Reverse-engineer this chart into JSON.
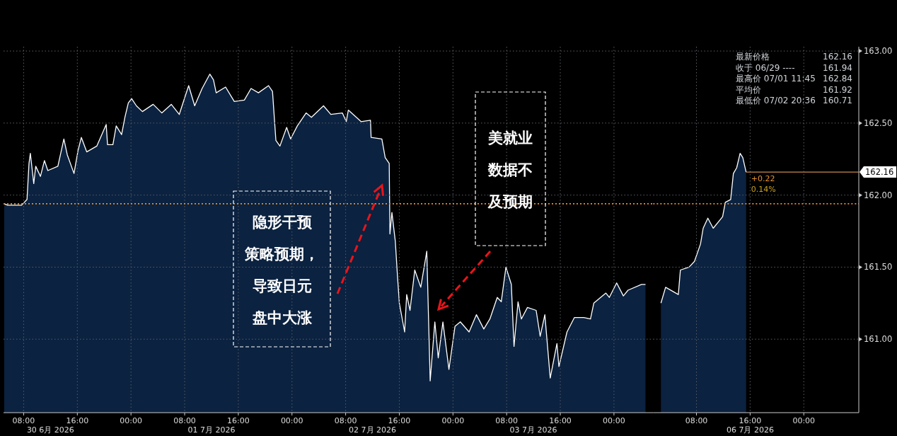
{
  "chart_data": [
    {
      "type": "area",
      "color": "#ffffff",
      "x": [
        "2026-06-30T05:06",
        "2026-06-30T05:36",
        "2026-06-30T07:42",
        "2026-06-30T08:30",
        "2026-06-30T08:48",
        "2026-06-30T09:00",
        "2026-06-30T09:30",
        "2026-06-30T09:48",
        "2026-06-30T10:30",
        "2026-06-30T11:06",
        "2026-06-30T11:36",
        "2026-06-30T13:06",
        "2026-06-30T14:00",
        "2026-06-30T14:30",
        "2026-06-30T15:30",
        "2026-06-30T16:06",
        "2026-06-30T16:36",
        "2026-06-30T17:24",
        "2026-06-30T18:54",
        "2026-06-30T20:18",
        "2026-06-30T20:30",
        "2026-06-30T21:18",
        "2026-06-30T21:48",
        "2026-06-30T22:36",
        "2026-06-30T23:06",
        "2026-06-30T23:36",
        "2026-07-01T00:06",
        "2026-07-01T00:48",
        "2026-07-01T01:42",
        "2026-07-01T03:18",
        "2026-07-01T04:36",
        "2026-07-01T06:00",
        "2026-07-01T07:12",
        "2026-07-01T08:06",
        "2026-07-01T08:36",
        "2026-07-01T09:30",
        "2026-07-01T10:36",
        "2026-07-01T11:45",
        "2026-07-01T12:18",
        "2026-07-01T12:42",
        "2026-07-01T14:06",
        "2026-07-01T15:24",
        "2026-07-01T16:54",
        "2026-07-01T17:54",
        "2026-07-01T19:00",
        "2026-07-01T20:30",
        "2026-07-01T21:06",
        "2026-07-01T21:36",
        "2026-07-01T22:12",
        "2026-07-01T23:12",
        "2026-07-01T23:48",
        "2026-07-02T00:48",
        "2026-07-02T02:06",
        "2026-07-02T02:54",
        "2026-07-02T04:42",
        "2026-07-02T05:48",
        "2026-07-02T07:30",
        "2026-07-02T08:06",
        "2026-07-02T08:24",
        "2026-07-02T10:18",
        "2026-07-02T11:42",
        "2026-07-02T11:48",
        "2026-07-02T13:24",
        "2026-07-02T13:54",
        "2026-07-02T14:30",
        "2026-07-02T14:36",
        "2026-07-02T14:54",
        "2026-07-02T15:24",
        "2026-07-02T15:42",
        "2026-07-02T16:00",
        "2026-07-02T16:48",
        "2026-07-02T17:06",
        "2026-07-02T17:36",
        "2026-07-02T18:18",
        "2026-07-02T19:12",
        "2026-07-02T20:06",
        "2026-07-02T20:36",
        "2026-07-02T21:18",
        "2026-07-02T21:48",
        "2026-07-02T22:30",
        "2026-07-02T23:24",
        "2026-07-03T00:18",
        "2026-07-03T01:06",
        "2026-07-03T02:24",
        "2026-07-03T03:30",
        "2026-07-03T04:36",
        "2026-07-03T05:30",
        "2026-07-03T06:36",
        "2026-07-03T07:12",
        "2026-07-03T07:54",
        "2026-07-03T08:42",
        "2026-07-03T09:06",
        "2026-07-03T09:42",
        "2026-07-03T10:12",
        "2026-07-03T11:06",
        "2026-07-03T12:24",
        "2026-07-03T13:00",
        "2026-07-03T13:42",
        "2026-07-03T14:30",
        "2026-07-03T15:30",
        "2026-07-03T15:48",
        "2026-07-03T17:00",
        "2026-07-03T18:06",
        "2026-07-03T19:30",
        "2026-07-03T20:30",
        "2026-07-03T21:00",
        "2026-07-03T22:48",
        "2026-07-03T23:18",
        "2026-07-04T00:24",
        "2026-07-04T01:24",
        "2026-07-04T02:06",
        "2026-07-04T04:06",
        "2026-07-04T04:42"
      ],
      "values": [
        161.94,
        161.93,
        161.93,
        161.97,
        162.22,
        162.29,
        162.08,
        162.2,
        162.13,
        162.24,
        162.17,
        162.2,
        162.39,
        162.28,
        162.15,
        162.31,
        162.4,
        162.3,
        162.34,
        162.49,
        162.35,
        162.35,
        162.48,
        162.42,
        162.54,
        162.64,
        162.67,
        162.62,
        162.58,
        162.63,
        162.57,
        162.63,
        162.56,
        162.69,
        162.76,
        162.62,
        162.74,
        162.84,
        162.8,
        162.71,
        162.75,
        162.65,
        162.66,
        162.74,
        162.71,
        162.76,
        162.72,
        162.38,
        162.34,
        162.47,
        162.39,
        162.48,
        162.57,
        162.54,
        162.62,
        162.56,
        162.57,
        162.51,
        162.59,
        162.51,
        162.52,
        162.4,
        162.39,
        162.26,
        162.22,
        161.73,
        161.88,
        161.68,
        161.46,
        161.25,
        161.05,
        161.31,
        161.2,
        161.48,
        161.36,
        161.61,
        160.71,
        161.12,
        160.87,
        161.12,
        160.79,
        161.09,
        161.12,
        161.05,
        161.17,
        161.07,
        161.14,
        161.29,
        161.26,
        161.5,
        161.38,
        160.95,
        161.26,
        161.14,
        161.22,
        161.2,
        161.02,
        161.17,
        160.73,
        160.97,
        160.81,
        161.05,
        161.15,
        161.15,
        161.14,
        161.25,
        161.32,
        161.29,
        161.39,
        161.3,
        161.34,
        161.38,
        161.38
      ],
      "xlim": [
        "2026-06-30T05:00",
        "2026-07-04T05:51"
      ],
      "xticks": [
        {
          "value": "2026-06-30T08:00",
          "label": "08:00"
        },
        {
          "value": "2026-06-30T16:00",
          "label": "16:00"
        },
        {
          "value": "2026-07-01T00:00",
          "label": "00:00"
        },
        {
          "value": "2026-07-01T08:00",
          "label": "08:00"
        },
        {
          "value": "2026-07-01T16:00",
          "label": "16:00"
        },
        {
          "value": "2026-07-02T00:00",
          "label": "00:00"
        },
        {
          "value": "2026-07-02T08:00",
          "label": "08:00"
        },
        {
          "value": "2026-07-02T16:00",
          "label": "16:00"
        },
        {
          "value": "2026-07-03T00:00",
          "label": "00:00"
        },
        {
          "value": "2026-07-03T08:00",
          "label": "08:00"
        },
        {
          "value": "2026-07-03T16:00",
          "label": "16:00"
        },
        {
          "value": "2026-07-04T00:00",
          "label": "00:00"
        }
      ],
      "x2lim": [
        "2026-06-30T05:00",
        "2026-07-04T05:51"
      ],
      "x2ticks": [
        {
          "value": "2026-06-30T12:00",
          "label": "30 6月 2026"
        },
        {
          "value": "2026-07-01T12:00",
          "label": "01 7月 2026"
        },
        {
          "value": "2026-07-02T12:00",
          "label": "02 7月 2026"
        },
        {
          "value": "2026-07-03T12:00",
          "label": "03 7月 2026"
        }
      ],
      "ylim": [
        160.49,
        163.03
      ],
      "yticks": [
        161,
        161.5,
        162,
        162.5,
        163
      ],
      "tick_labels": "x",
      "grid": true,
      "line_style": "solid",
      "ref_lines": [
        {
          "axis": "y",
          "value": 161.94,
          "color": "#e8912d",
          "line_style": "dotted"
        }
      ],
      "annotations": [
        "隐形干预策略预期，导致日元盘中大涨",
        "美就业数据不及预期"
      ]
    },
    {
      "type": "area",
      "color": "#ffffff",
      "x": [
        "2026-07-06T02:42",
        "2026-07-06T03:24",
        "2026-07-06T05:18",
        "2026-07-06T05:36",
        "2026-07-06T06:54",
        "2026-07-06T07:42",
        "2026-07-06T08:36",
        "2026-07-06T09:00",
        "2026-07-06T09:42",
        "2026-07-06T10:30",
        "2026-07-06T11:54",
        "2026-07-06T12:18",
        "2026-07-06T13:06",
        "2026-07-06T13:30",
        "2026-07-06T14:00",
        "2026-07-06T14:30",
        "2026-07-06T14:54",
        "2026-07-06T15:24"
      ],
      "values": [
        161.25,
        161.36,
        161.31,
        161.48,
        161.5,
        161.54,
        161.66,
        161.77,
        161.84,
        161.77,
        161.85,
        161.95,
        161.97,
        162.15,
        162.19,
        162.29,
        162.26,
        162.16
      ],
      "xlim": [
        "2026-07-06T01:33",
        "2026-07-07T08:12"
      ],
      "xticks": [
        {
          "value": "2026-07-06T08:00",
          "label": "08:00"
        },
        {
          "value": "2026-07-06T16:00",
          "label": "16:00"
        },
        {
          "value": "2026-07-07T00:00",
          "label": "00:00"
        }
      ],
      "ylim": [
        160.49,
        163.03
      ],
      "yticks": [
        {
          "value": 161,
          "label": "161.00"
        },
        {
          "value": 161.5,
          "label": "161.50"
        },
        {
          "value": 162,
          "label": "162.00"
        },
        {
          "value": 162.5,
          "label": "162.50"
        },
        {
          "value": 163,
          "label": "163.00"
        }
      ],
      "grid": true,
      "line_style": "solid",
      "ref_lines": [
        {
          "axis": "y",
          "value": 161.94,
          "color": "#e8912d",
          "line_style": "dotted"
        },
        {
          "axis": "y",
          "value": 162.16,
          "color": "#c8894a",
          "line_style": "solid",
          "label": "162.16"
        }
      ],
      "annotations": [
        "+0.22",
        "0.14%",
        "最新价格 162.16",
        "收于 06/29 ---- 161.94",
        "最高价 07/01 11:45 162.84",
        "平均价 161.92",
        "最低价 07/02 20:36 160.71",
        "06 7月 2026"
      ]
    }
  ]
}
